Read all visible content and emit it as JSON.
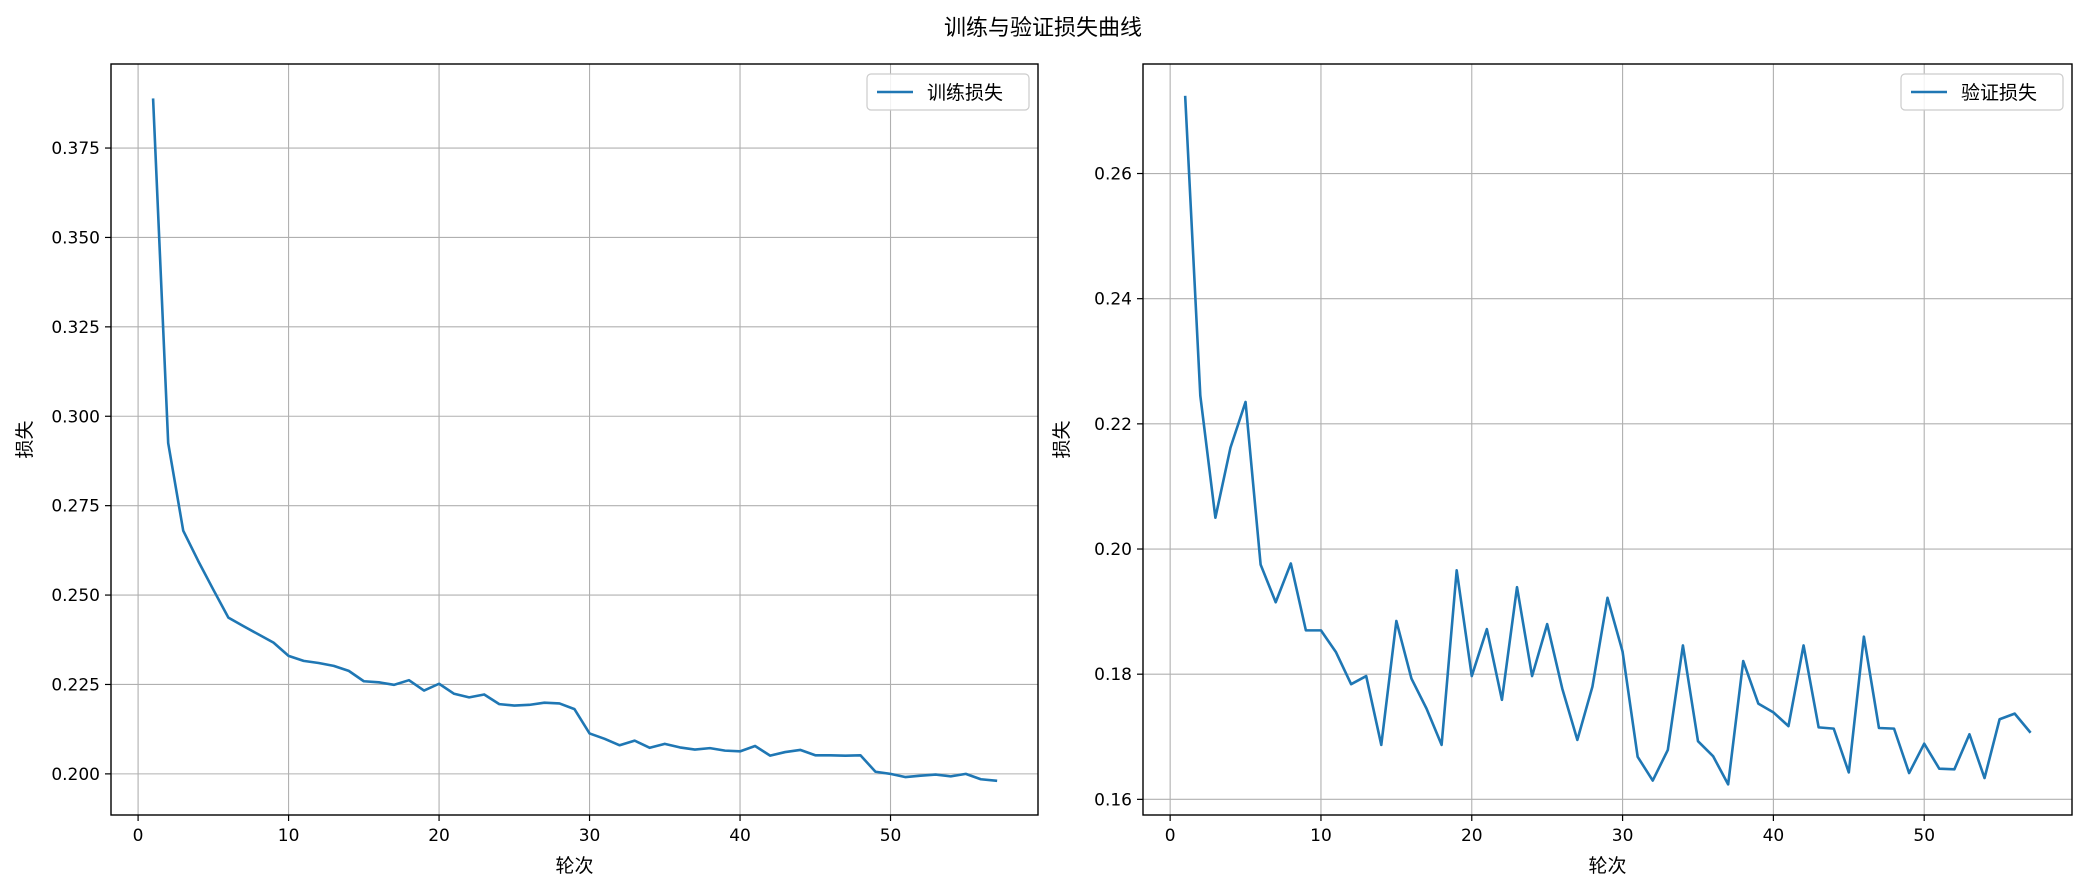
{
  "figure_title": "训练与验证损失曲线",
  "colors": {
    "line": "#1f77b4",
    "grid": "#b0b0b0"
  },
  "chart_data": [
    {
      "type": "line",
      "title": "",
      "xlabel": "轮次",
      "ylabel": "损失",
      "xlim": [
        -1.8,
        59.8
      ],
      "ylim": [
        0.1885,
        0.3985
      ],
      "xticks": [
        0,
        10,
        20,
        30,
        40,
        50
      ],
      "xtick_labels": [
        "0",
        "10",
        "20",
        "30",
        "40",
        "50"
      ],
      "yticks": [
        0.2,
        0.225,
        0.25,
        0.275,
        0.3,
        0.325,
        0.35,
        0.375
      ],
      "ytick_labels": [
        "0.200",
        "0.225",
        "0.250",
        "0.275",
        "0.300",
        "0.325",
        "0.350",
        "0.375"
      ],
      "grid": true,
      "legend_position": "top-right",
      "series": [
        {
          "name": "训练损失",
          "color": "#1f77b4",
          "x": [
            1,
            2,
            3,
            4,
            5,
            6,
            7,
            8,
            9,
            10,
            11,
            12,
            13,
            14,
            15,
            16,
            17,
            18,
            19,
            20,
            21,
            22,
            23,
            24,
            25,
            26,
            27,
            28,
            29,
            30,
            31,
            32,
            33,
            34,
            35,
            36,
            37,
            38,
            39,
            40,
            41,
            42,
            43,
            44,
            45,
            46,
            47,
            48,
            49,
            50,
            51,
            52,
            53,
            54,
            55,
            56,
            57
          ],
          "y": [
            0.3885,
            0.2925,
            0.268,
            0.2595,
            0.2515,
            0.2437,
            0.2413,
            0.239,
            0.2367,
            0.233,
            0.2316,
            0.231,
            0.2302,
            0.2288,
            0.2259,
            0.2256,
            0.2249,
            0.2262,
            0.2233,
            0.2252,
            0.2224,
            0.2214,
            0.2222,
            0.2195,
            0.2191,
            0.2193,
            0.2199,
            0.2197,
            0.2181,
            0.2113,
            0.2098,
            0.208,
            0.2093,
            0.2073,
            0.2084,
            0.2074,
            0.2068,
            0.2072,
            0.2065,
            0.2063,
            0.2078,
            0.2051,
            0.2061,
            0.2067,
            0.2052,
            0.2052,
            0.2051,
            0.2052,
            0.2006,
            0.2,
            0.1991,
            0.1995,
            0.1998,
            0.1993,
            0.2,
            0.1985,
            0.1981
          ]
        }
      ]
    },
    {
      "type": "line",
      "title": "",
      "xlabel": "轮次",
      "ylabel": "损失",
      "xlim": [
        -1.8,
        59.8
      ],
      "ylim": [
        0.1575,
        0.2775
      ],
      "xticks": [
        0,
        10,
        20,
        30,
        40,
        50
      ],
      "xtick_labels": [
        "0",
        "10",
        "20",
        "30",
        "40",
        "50"
      ],
      "yticks": [
        0.16,
        0.18,
        0.2,
        0.22,
        0.24,
        0.26
      ],
      "ytick_labels": [
        "0.16",
        "0.18",
        "0.20",
        "0.22",
        "0.24",
        "0.26"
      ],
      "grid": true,
      "legend_position": "top-right",
      "series": [
        {
          "name": "验证损失",
          "color": "#1f77b4",
          "x": [
            1,
            2,
            3,
            4,
            5,
            6,
            7,
            8,
            9,
            10,
            11,
            12,
            13,
            14,
            15,
            16,
            17,
            18,
            19,
            20,
            21,
            22,
            23,
            24,
            25,
            26,
            27,
            28,
            29,
            30,
            31,
            32,
            33,
            34,
            35,
            36,
            37,
            38,
            39,
            40,
            41,
            42,
            43,
            44,
            45,
            46,
            47,
            48,
            49,
            50,
            51,
            52,
            53,
            54,
            55,
            56,
            57
          ],
          "y": [
            0.2722,
            0.2245,
            0.205,
            0.2162,
            0.2235,
            0.1975,
            0.1915,
            0.1977,
            0.187,
            0.187,
            0.1835,
            0.1784,
            0.1797,
            0.1687,
            0.1885,
            0.1793,
            0.1745,
            0.1687,
            0.1966,
            0.1797,
            0.1872,
            0.1759,
            0.1939,
            0.1797,
            0.188,
            0.1777,
            0.1695,
            0.178,
            0.1922,
            0.1836,
            0.1668,
            0.163,
            0.1679,
            0.1846,
            0.1693,
            0.1669,
            0.1624,
            0.1821,
            0.1753,
            0.1739,
            0.1717,
            0.1846,
            0.1715,
            0.1713,
            0.1643,
            0.186,
            0.1714,
            0.1713,
            0.1642,
            0.1689,
            0.1649,
            0.1648,
            0.1704,
            0.1634,
            0.1728,
            0.1737,
            0.1708
          ]
        }
      ]
    }
  ]
}
